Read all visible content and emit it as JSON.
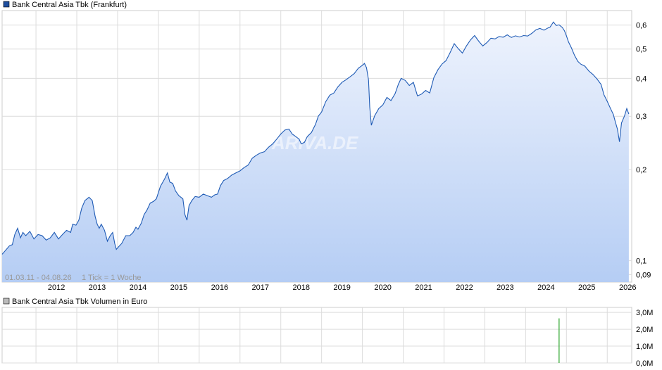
{
  "chart_data": [
    {
      "type": "area",
      "legend": {
        "label": "Bank Central Asia Tbk (Frankfurt)",
        "color": "#1f4e9e",
        "placement": "top-left"
      },
      "watermark": "ARIVA.DE",
      "range_label": "01.03.11 - 04.08.26",
      "tick_info": "1 Tick = 1 Woche",
      "y_scale": "log",
      "ylim": [
        0.085,
        0.67
      ],
      "y_ticks": [
        {
          "value": 0.6,
          "label": "0,6"
        },
        {
          "value": 0.5,
          "label": "0,5"
        },
        {
          "value": 0.4,
          "label": "0,4"
        },
        {
          "value": 0.3,
          "label": "0,3"
        },
        {
          "value": 0.2,
          "label": "0,2"
        },
        {
          "value": 0.1,
          "label": "0,1"
        },
        {
          "value": 0.09,
          "label": "0,09"
        }
      ],
      "x_range": [
        2011.17,
        2026.6
      ],
      "x_ticks": [
        {
          "value": 2012,
          "label": "2012"
        },
        {
          "value": 2013,
          "label": "2013"
        },
        {
          "value": 2014,
          "label": "2014"
        },
        {
          "value": 2015,
          "label": "2015"
        },
        {
          "value": 2016,
          "label": "2016"
        },
        {
          "value": 2017,
          "label": "2017"
        },
        {
          "value": 2018,
          "label": "2018"
        },
        {
          "value": 2019,
          "label": "2019"
        },
        {
          "value": 2020,
          "label": "2020"
        },
        {
          "value": 2021,
          "label": "2021"
        },
        {
          "value": 2022,
          "label": "2022"
        },
        {
          "value": 2023,
          "label": "2023"
        },
        {
          "value": 2024,
          "label": "2024"
        },
        {
          "value": 2025,
          "label": "2025"
        },
        {
          "value": 2026,
          "label": "2026"
        }
      ],
      "grid": true,
      "colors": {
        "line": "#1f5bb5",
        "fill_top": "#eef3fd",
        "fill_bottom": "#b5cdf4",
        "grid": "#dcdcdc"
      },
      "points": [
        [
          2011.17,
          0.105
        ],
        [
          2011.25,
          0.108
        ],
        [
          2011.35,
          0.112
        ],
        [
          2011.42,
          0.113
        ],
        [
          2011.48,
          0.122
        ],
        [
          2011.55,
          0.128
        ],
        [
          2011.62,
          0.119
        ],
        [
          2011.68,
          0.124
        ],
        [
          2011.75,
          0.121
        ],
        [
          2011.85,
          0.125
        ],
        [
          2011.95,
          0.118
        ],
        [
          2012.05,
          0.122
        ],
        [
          2012.15,
          0.121
        ],
        [
          2012.25,
          0.117
        ],
        [
          2012.35,
          0.119
        ],
        [
          2012.45,
          0.124
        ],
        [
          2012.55,
          0.118
        ],
        [
          2012.65,
          0.122
        ],
        [
          2012.75,
          0.126
        ],
        [
          2012.85,
          0.124
        ],
        [
          2012.9,
          0.132
        ],
        [
          2012.98,
          0.131
        ],
        [
          2013.05,
          0.136
        ],
        [
          2013.12,
          0.149
        ],
        [
          2013.2,
          0.158
        ],
        [
          2013.3,
          0.162
        ],
        [
          2013.38,
          0.158
        ],
        [
          2013.45,
          0.14
        ],
        [
          2013.5,
          0.132
        ],
        [
          2013.55,
          0.128
        ],
        [
          2013.6,
          0.132
        ],
        [
          2013.68,
          0.126
        ],
        [
          2013.75,
          0.116
        ],
        [
          2013.82,
          0.121
        ],
        [
          2013.88,
          0.124
        ],
        [
          2013.93,
          0.114
        ],
        [
          2013.97,
          0.109
        ],
        [
          2014.02,
          0.111
        ],
        [
          2014.1,
          0.114
        ],
        [
          2014.2,
          0.121
        ],
        [
          2014.3,
          0.121
        ],
        [
          2014.38,
          0.124
        ],
        [
          2014.45,
          0.129
        ],
        [
          2014.5,
          0.127
        ],
        [
          2014.58,
          0.133
        ],
        [
          2014.65,
          0.142
        ],
        [
          2014.72,
          0.147
        ],
        [
          2014.8,
          0.155
        ],
        [
          2014.88,
          0.157
        ],
        [
          2014.95,
          0.16
        ],
        [
          2015.05,
          0.176
        ],
        [
          2015.15,
          0.186
        ],
        [
          2015.22,
          0.195
        ],
        [
          2015.28,
          0.182
        ],
        [
          2015.35,
          0.18
        ],
        [
          2015.42,
          0.17
        ],
        [
          2015.5,
          0.164
        ],
        [
          2015.6,
          0.16
        ],
        [
          2015.65,
          0.142
        ],
        [
          2015.7,
          0.136
        ],
        [
          2015.75,
          0.152
        ],
        [
          2015.82,
          0.158
        ],
        [
          2015.9,
          0.163
        ],
        [
          2016.0,
          0.162
        ],
        [
          2016.1,
          0.166
        ],
        [
          2016.2,
          0.164
        ],
        [
          2016.3,
          0.162
        ],
        [
          2016.38,
          0.165
        ],
        [
          2016.45,
          0.166
        ],
        [
          2016.52,
          0.177
        ],
        [
          2016.6,
          0.184
        ],
        [
          2016.7,
          0.187
        ],
        [
          2016.8,
          0.192
        ],
        [
          2016.9,
          0.195
        ],
        [
          2017.0,
          0.198
        ],
        [
          2017.1,
          0.203
        ],
        [
          2017.2,
          0.207
        ],
        [
          2017.3,
          0.218
        ],
        [
          2017.4,
          0.223
        ],
        [
          2017.5,
          0.227
        ],
        [
          2017.6,
          0.229
        ],
        [
          2017.7,
          0.237
        ],
        [
          2017.8,
          0.243
        ],
        [
          2017.9,
          0.252
        ],
        [
          2018.0,
          0.262
        ],
        [
          2018.1,
          0.27
        ],
        [
          2018.2,
          0.272
        ],
        [
          2018.28,
          0.262
        ],
        [
          2018.35,
          0.258
        ],
        [
          2018.45,
          0.252
        ],
        [
          2018.5,
          0.243
        ],
        [
          2018.58,
          0.246
        ],
        [
          2018.65,
          0.257
        ],
        [
          2018.75,
          0.265
        ],
        [
          2018.85,
          0.282
        ],
        [
          2018.92,
          0.3
        ],
        [
          2019.0,
          0.31
        ],
        [
          2019.1,
          0.335
        ],
        [
          2019.2,
          0.352
        ],
        [
          2019.3,
          0.358
        ],
        [
          2019.4,
          0.375
        ],
        [
          2019.5,
          0.388
        ],
        [
          2019.6,
          0.396
        ],
        [
          2019.7,
          0.405
        ],
        [
          2019.8,
          0.415
        ],
        [
          2019.9,
          0.432
        ],
        [
          2020.0,
          0.442
        ],
        [
          2020.05,
          0.448
        ],
        [
          2020.1,
          0.434
        ],
        [
          2020.15,
          0.395
        ],
        [
          2020.18,
          0.322
        ],
        [
          2020.22,
          0.28
        ],
        [
          2020.3,
          0.301
        ],
        [
          2020.4,
          0.318
        ],
        [
          2020.5,
          0.327
        ],
        [
          2020.6,
          0.346
        ],
        [
          2020.7,
          0.338
        ],
        [
          2020.8,
          0.356
        ],
        [
          2020.88,
          0.382
        ],
        [
          2020.95,
          0.4
        ],
        [
          2021.05,
          0.394
        ],
        [
          2021.15,
          0.379
        ],
        [
          2021.25,
          0.388
        ],
        [
          2021.35,
          0.35
        ],
        [
          2021.45,
          0.355
        ],
        [
          2021.55,
          0.365
        ],
        [
          2021.65,
          0.358
        ],
        [
          2021.75,
          0.402
        ],
        [
          2021.85,
          0.427
        ],
        [
          2021.95,
          0.446
        ],
        [
          2022.05,
          0.458
        ],
        [
          2022.15,
          0.487
        ],
        [
          2022.25,
          0.521
        ],
        [
          2022.35,
          0.501
        ],
        [
          2022.45,
          0.485
        ],
        [
          2022.55,
          0.512
        ],
        [
          2022.65,
          0.536
        ],
        [
          2022.75,
          0.554
        ],
        [
          2022.85,
          0.531
        ],
        [
          2022.95,
          0.512
        ],
        [
          2023.05,
          0.525
        ],
        [
          2023.15,
          0.543
        ],
        [
          2023.25,
          0.54
        ],
        [
          2023.35,
          0.55
        ],
        [
          2023.45,
          0.547
        ],
        [
          2023.55,
          0.557
        ],
        [
          2023.65,
          0.546
        ],
        [
          2023.75,
          0.553
        ],
        [
          2023.85,
          0.548
        ],
        [
          2023.95,
          0.554
        ],
        [
          2024.05,
          0.552
        ],
        [
          2024.15,
          0.563
        ],
        [
          2024.25,
          0.578
        ],
        [
          2024.35,
          0.585
        ],
        [
          2024.45,
          0.577
        ],
        [
          2024.55,
          0.587
        ],
        [
          2024.6,
          0.591
        ],
        [
          2024.68,
          0.614
        ],
        [
          2024.75,
          0.598
        ],
        [
          2024.82,
          0.601
        ],
        [
          2024.9,
          0.589
        ],
        [
          2024.95,
          0.575
        ],
        [
          2025.0,
          0.553
        ],
        [
          2025.05,
          0.528
        ],
        [
          2025.12,
          0.505
        ],
        [
          2025.2,
          0.476
        ],
        [
          2025.28,
          0.455
        ],
        [
          2025.35,
          0.446
        ],
        [
          2025.45,
          0.439
        ],
        [
          2025.55,
          0.423
        ],
        [
          2025.65,
          0.412
        ],
        [
          2025.75,
          0.398
        ],
        [
          2025.85,
          0.382
        ],
        [
          2025.92,
          0.353
        ],
        [
          2026.0,
          0.336
        ],
        [
          2026.08,
          0.318
        ],
        [
          2026.15,
          0.304
        ],
        [
          2026.2,
          0.287
        ],
        [
          2026.25,
          0.272
        ],
        [
          2026.3,
          0.247
        ],
        [
          2026.35,
          0.285
        ],
        [
          2026.42,
          0.3
        ],
        [
          2026.48,
          0.318
        ],
        [
          2026.53,
          0.305
        ]
      ]
    },
    {
      "type": "bar",
      "legend": {
        "label": "Bank Central Asia Tbk Volumen in Euro",
        "color": "#bbbbbb",
        "placement": "top-left"
      },
      "ylim": [
        0,
        3300000
      ],
      "y_ticks": [
        {
          "value": 3000000,
          "label": "3,0M"
        },
        {
          "value": 2000000,
          "label": "2,0M"
        },
        {
          "value": 1000000,
          "label": "1,0M"
        },
        {
          "value": 0,
          "label": "0,0M"
        }
      ],
      "grid": true,
      "colors": {
        "up": "#2aa52a",
        "down": "#cc3333"
      },
      "bars": [
        {
          "x": 2024.82,
          "value": 2650000,
          "color": "#2aa52a"
        }
      ]
    }
  ]
}
